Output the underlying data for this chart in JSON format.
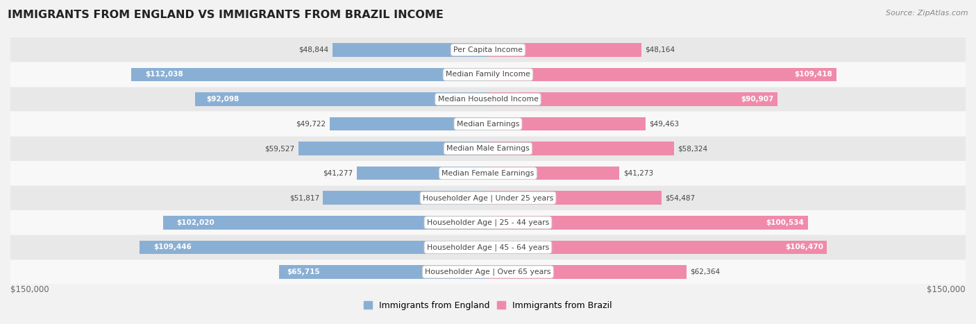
{
  "title": "IMMIGRANTS FROM ENGLAND VS IMMIGRANTS FROM BRAZIL INCOME",
  "source": "Source: ZipAtlas.com",
  "categories": [
    "Per Capita Income",
    "Median Family Income",
    "Median Household Income",
    "Median Earnings",
    "Median Male Earnings",
    "Median Female Earnings",
    "Householder Age | Under 25 years",
    "Householder Age | 25 - 44 years",
    "Householder Age | 45 - 64 years",
    "Householder Age | Over 65 years"
  ],
  "england_values": [
    48844,
    112038,
    92098,
    49722,
    59527,
    41277,
    51817,
    102020,
    109446,
    65715
  ],
  "brazil_values": [
    48164,
    109418,
    90907,
    49463,
    58324,
    41273,
    54487,
    100534,
    106470,
    62364
  ],
  "england_labels": [
    "$48,844",
    "$112,038",
    "$92,098",
    "$49,722",
    "$59,527",
    "$41,277",
    "$51,817",
    "$102,020",
    "$109,446",
    "$65,715"
  ],
  "brazil_labels": [
    "$48,164",
    "$109,418",
    "$90,907",
    "$49,463",
    "$58,324",
    "$41,273",
    "$54,487",
    "$100,534",
    "$106,470",
    "$62,364"
  ],
  "england_color": "#8aafd4",
  "england_color_dark": "#6090c0",
  "brazil_color": "#f08aaa",
  "brazil_color_dark": "#e0607a",
  "england_label_color_threshold": 65000,
  "brazil_label_color_threshold": 65000,
  "max_value": 150000,
  "legend_england": "Immigrants from England",
  "legend_brazil": "Immigrants from Brazil",
  "bg_color": "#f2f2f2",
  "row_color_odd": "#e8e8e8",
  "row_color_even": "#f8f8f8",
  "category_text_color": "#444444",
  "value_label_dark_color": "#444444",
  "axis_label_color": "#666666",
  "title_color": "#222222",
  "source_color": "#888888"
}
